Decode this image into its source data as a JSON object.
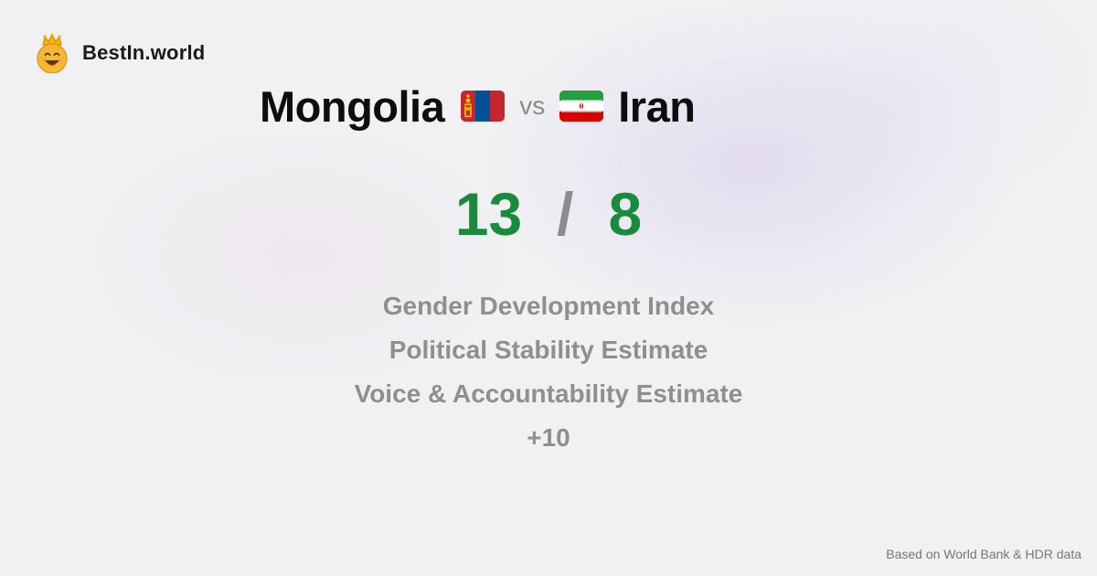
{
  "brand": {
    "name": "BestIn.world",
    "logo_icon": "crowned-smiley-icon"
  },
  "comparison": {
    "left_country": "Mongolia",
    "left_flag_icon": "mongolia-flag-icon",
    "vs_label": "vs",
    "right_country": "Iran",
    "right_flag_icon": "iran-flag-icon",
    "left_score": "13",
    "separator": "/",
    "right_score": "8"
  },
  "metrics": [
    "Gender Development Index",
    "Political Stability Estimate",
    "Voice & Accountability Estimate",
    "+10"
  ],
  "footer": {
    "source_note": "Based on World Bank & HDR data"
  },
  "colors": {
    "score_green": "#1a8a3c",
    "muted_gray": "#8f8f8f",
    "title_black": "#0d0d0d"
  }
}
